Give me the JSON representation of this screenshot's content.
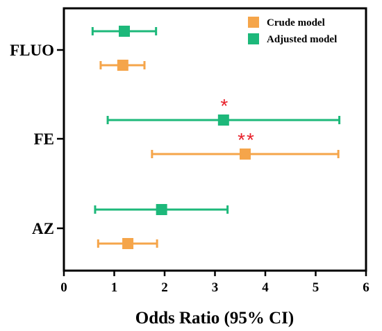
{
  "chart_data": {
    "type": "forest",
    "xlabel": "Odds Ratio (95% CI)",
    "xlim": [
      0,
      6
    ],
    "xticks": [
      "0",
      "1",
      "2",
      "3",
      "4",
      "5",
      "6"
    ],
    "categories": [
      "FLUO",
      "FE",
      "AZ"
    ],
    "series": [
      {
        "name": "Crude model",
        "color": "#F5A54A",
        "points": [
          {
            "category": "FLUO",
            "or": 1.17,
            "lower": 0.73,
            "upper": 1.6,
            "significance": ""
          },
          {
            "category": "FE",
            "or": 3.6,
            "lower": 1.75,
            "upper": 5.45,
            "significance": "**"
          },
          {
            "category": "AZ",
            "or": 1.27,
            "lower": 0.68,
            "upper": 1.85,
            "significance": ""
          }
        ]
      },
      {
        "name": "Adjusted model",
        "color": "#1DB87A",
        "points": [
          {
            "category": "FLUO",
            "or": 1.2,
            "lower": 0.57,
            "upper": 1.83,
            "significance": ""
          },
          {
            "category": "FE",
            "or": 3.17,
            "lower": 0.87,
            "upper": 5.47,
            "significance": "*"
          },
          {
            "category": "AZ",
            "or": 1.94,
            "lower": 0.62,
            "upper": 3.25,
            "significance": ""
          }
        ]
      }
    ],
    "significance_color": "#E8202A",
    "legend_position": "top-right"
  }
}
